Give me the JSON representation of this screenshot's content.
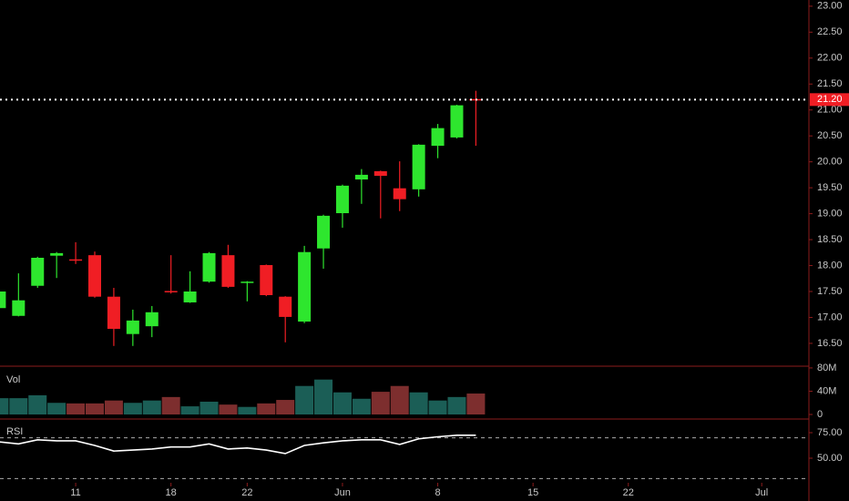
{
  "chart_data": [
    {
      "type": "candlestick",
      "open": [
        17.18,
        17.03,
        17.61,
        18.19,
        18.12,
        18.2,
        17.4,
        16.68,
        16.83,
        17.51,
        17.29,
        17.69,
        18.2,
        17.67,
        18.01,
        17.4,
        16.92,
        18.33,
        19.01,
        19.66,
        19.82,
        19.49,
        19.47,
        20.31,
        20.47,
        21.21
      ],
      "high": [
        17.52,
        17.85,
        18.17,
        18.26,
        18.45,
        18.27,
        17.57,
        17.15,
        17.22,
        18.2,
        17.89,
        18.26,
        18.4,
        17.7,
        18.02,
        17.41,
        18.38,
        18.98,
        19.56,
        19.86,
        19.83,
        20.01,
        20.34,
        20.73,
        21.1,
        21.37
      ],
      "low": [
        17.15,
        17.02,
        17.57,
        17.76,
        18.03,
        17.38,
        16.45,
        16.45,
        16.62,
        17.46,
        17.28,
        17.67,
        17.57,
        17.31,
        17.41,
        16.52,
        16.89,
        17.94,
        18.73,
        19.19,
        18.91,
        19.05,
        19.33,
        20.07,
        20.45,
        20.31
      ],
      "close": [
        17.5,
        17.33,
        18.15,
        18.24,
        18.1,
        17.4,
        16.78,
        16.94,
        17.1,
        17.49,
        17.5,
        18.24,
        17.59,
        17.69,
        17.43,
        17.01,
        18.26,
        18.96,
        19.54,
        19.75,
        19.73,
        19.28,
        20.33,
        20.65,
        21.09,
        21.2
      ],
      "up_color": "#2ee62e",
      "down_color": "#f01e24",
      "ylim": [
        16.06,
        23.12
      ],
      "yticks": [
        {
          "value": 16.5,
          "label": "16.50"
        },
        {
          "value": 17,
          "label": "17.00"
        },
        {
          "value": 17.5,
          "label": "17.50"
        },
        {
          "value": 18,
          "label": "18.00"
        },
        {
          "value": 18.5,
          "label": "18.50"
        },
        {
          "value": 19,
          "label": "19.00"
        },
        {
          "value": 19.5,
          "label": "19.50"
        },
        {
          "value": 20,
          "label": "20.00"
        },
        {
          "value": 20.5,
          "label": "20.50"
        },
        {
          "value": 21,
          "label": "21.00"
        },
        {
          "value": 21.5,
          "label": "21.50"
        },
        {
          "value": 22,
          "label": "22.00"
        },
        {
          "value": 22.5,
          "label": "22.50"
        },
        {
          "value": 23,
          "label": "23.00"
        }
      ],
      "last_price": {
        "value": 21.2,
        "label": "21.20"
      }
    },
    {
      "type": "bar",
      "title": "Vol",
      "values": [
        28,
        28,
        33,
        20,
        19,
        19,
        24,
        20,
        24,
        30,
        14,
        22,
        17,
        13,
        19,
        25,
        49,
        60,
        38,
        27,
        39,
        49,
        38,
        24,
        30,
        36
      ],
      "up_color": "#1b5e56",
      "down_color": "#7d2e2e",
      "ylim": [
        -7.8,
        83
      ],
      "yticks": [
        0,
        {
          "value": 40,
          "label": "40M"
        },
        {
          "value": 80,
          "label": "80M"
        }
      ]
    },
    {
      "type": "line",
      "title": "RSI",
      "categories": [
        null,
        null,
        null,
        null,
        "11",
        null,
        null,
        null,
        null,
        "18",
        null,
        null,
        null,
        "22",
        null,
        null,
        null,
        null,
        "Jun",
        null,
        null,
        null,
        null,
        "8",
        null,
        null,
        null,
        null,
        "15",
        null,
        null,
        null,
        null,
        "22",
        null,
        null,
        null,
        null,
        null,
        null,
        "Jul"
      ],
      "values": [
        66,
        64,
        68,
        67,
        67,
        62.5,
        57,
        58,
        59,
        61,
        61,
        64,
        59,
        60,
        58,
        54.5,
        62.5,
        65,
        67,
        68,
        68,
        63.5,
        69,
        71,
        72.5,
        72.5,
        null,
        null,
        null,
        null,
        null,
        null,
        null,
        null,
        null,
        null,
        null,
        null,
        null,
        null,
        null
      ],
      "color": "#ffffff",
      "levels": [
        70,
        30
      ],
      "ylim": [
        25.9,
        88.4
      ],
      "yticks": [
        {
          "value": 50,
          "label": "50.00"
        },
        {
          "value": 75,
          "label": "75.00"
        }
      ]
    }
  ]
}
